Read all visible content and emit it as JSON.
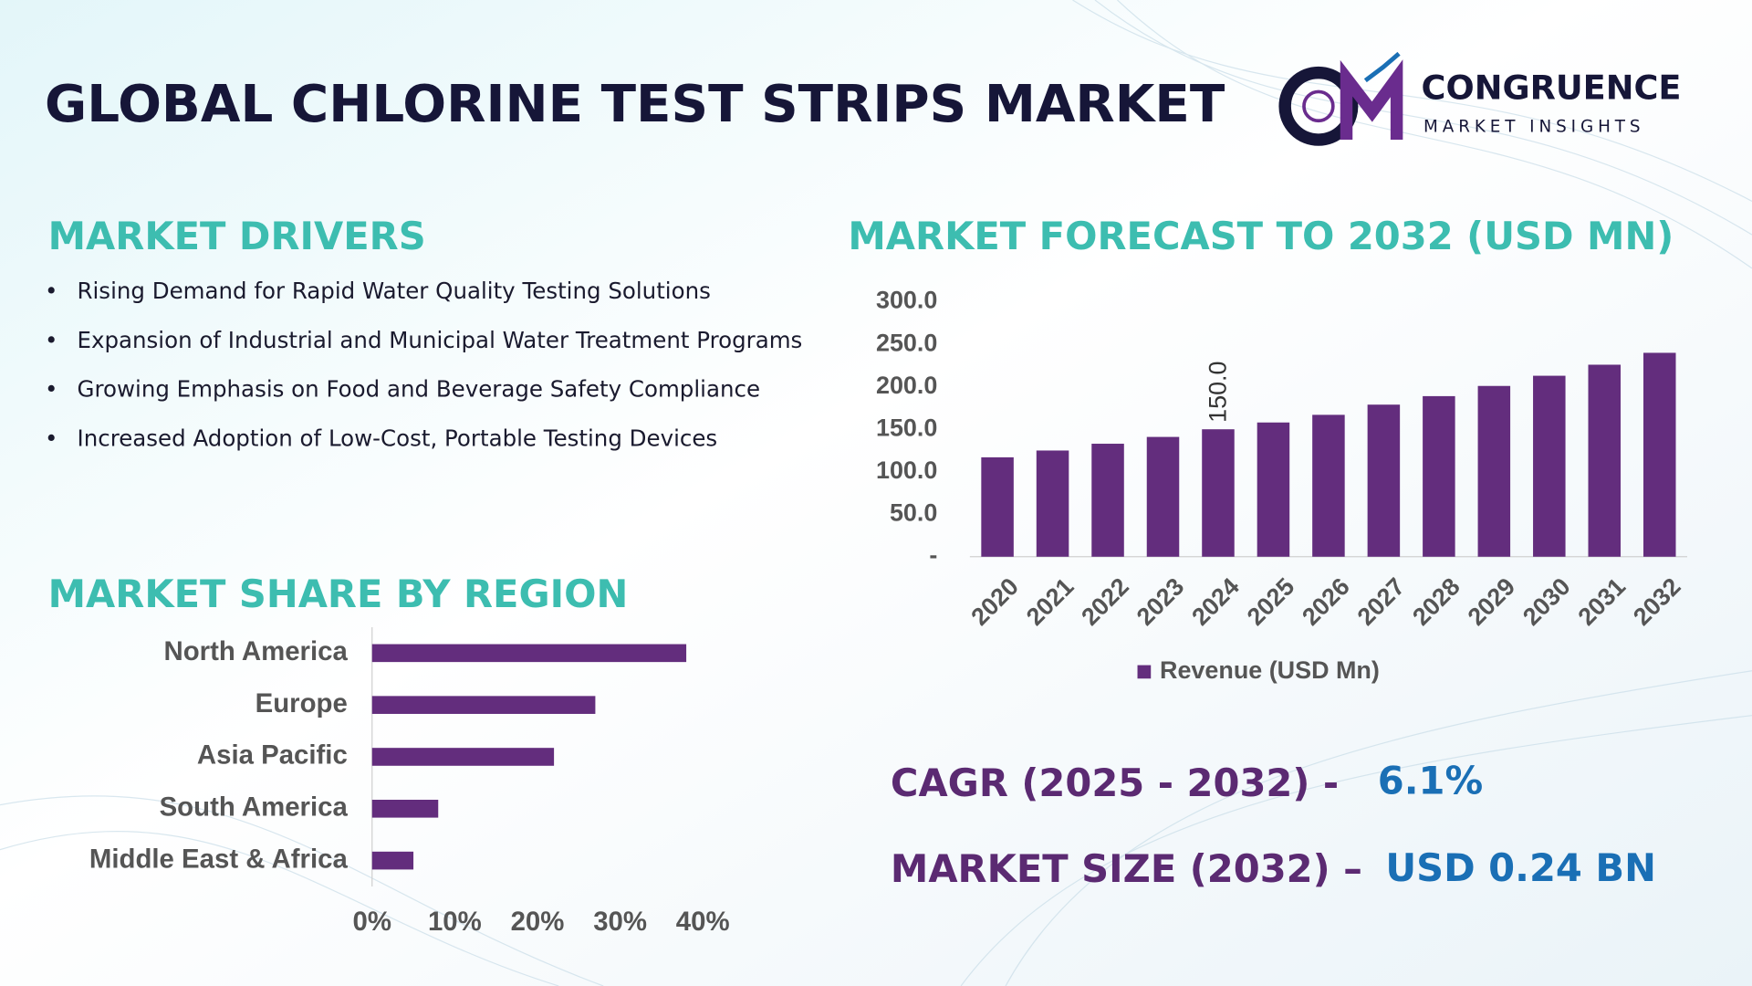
{
  "header": {
    "title": "GLOBAL CHLORINE TEST STRIPS MARKET",
    "logo_name": "CONGRUENCE",
    "logo_tagline": "MARKET INSIGHTS"
  },
  "drivers": {
    "heading": "MARKET DRIVERS",
    "items": [
      "Rising Demand for Rapid Water Quality Testing Solutions",
      "Expansion of Industrial and Municipal Water Treatment Programs",
      "Growing Emphasis on Food and Beverage Safety Compliance",
      "Increased Adoption of Low-Cost, Portable Testing Devices"
    ]
  },
  "forecast_heading": "MARKET FORECAST TO 2032 (USD MN)",
  "region_heading": "MARKET SHARE BY REGION",
  "cagr": {
    "label": "CAGR (2025 - 2032) -",
    "value": "6.1%"
  },
  "market_size": {
    "label": "MARKET SIZE (2032) –",
    "value": "USD 0.24 BN"
  },
  "chart_data": [
    {
      "type": "bar",
      "categories": [
        "2020",
        "2021",
        "2022",
        "2023",
        "2024",
        "2025",
        "2026",
        "2027",
        "2028",
        "2029",
        "2030",
        "2031",
        "2032"
      ],
      "series": [
        {
          "name": "Revenue (USD Mn)",
          "color": "#632d7d",
          "values": [
            117,
            125,
            133,
            141,
            150,
            158,
            167,
            179,
            189,
            201,
            213,
            226,
            240
          ],
          "value_labels": [
            null,
            null,
            null,
            null,
            "150.0",
            null,
            null,
            null,
            null,
            null,
            null,
            null,
            null
          ]
        }
      ],
      "ylim": [
        0,
        300
      ],
      "yticks": [
        {
          "value": 0,
          "label": "-"
        },
        {
          "value": 50,
          "label": "50.0"
        },
        {
          "value": 100,
          "label": "100.0"
        },
        {
          "value": 150,
          "label": "150.0"
        },
        {
          "value": 200,
          "label": "200.0"
        },
        {
          "value": 250,
          "label": "250.0"
        },
        {
          "value": 300,
          "label": "300.0"
        }
      ],
      "legend": "bottom"
    },
    {
      "type": "barh",
      "categories": [
        "North America",
        "Europe",
        "Asia Pacific",
        "South America",
        "Middle East & Africa"
      ],
      "values": [
        38,
        27,
        22,
        8,
        5
      ],
      "color": "#632d7d",
      "xlim": [
        0,
        40
      ],
      "xticks": [
        {
          "value": 0,
          "label": "0%"
        },
        {
          "value": 10,
          "label": "10%"
        },
        {
          "value": 20,
          "label": "20%"
        },
        {
          "value": 30,
          "label": "30%"
        },
        {
          "value": 40,
          "label": "40%"
        }
      ]
    }
  ]
}
